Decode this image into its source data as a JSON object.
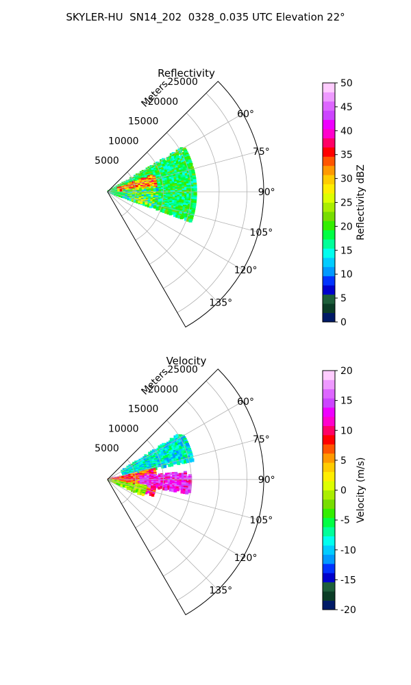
{
  "figure_title": "SKYLER-HU  SN14_202  0328_0.035 UTC Elevation 22°",
  "colors": {
    "frame": "#000000",
    "grid": "#b0b0b0",
    "background": "#ffffff"
  },
  "chart_data": [
    {
      "type": "heatmap",
      "projection": "polar-sector",
      "title": "Reflectivity",
      "range_label": "Meters",
      "range_ticks": [
        5000,
        10000,
        15000,
        20000,
        25000
      ],
      "range_max": 28000,
      "azimuth_range": [
        45,
        150
      ],
      "azimuth_ticks": [
        "60°",
        "75°",
        "90°",
        "105°",
        "120°",
        "135°"
      ],
      "azimuth_tick_values": [
        60,
        75,
        90,
        105,
        120,
        135
      ],
      "grid": true,
      "colorbar": {
        "label": "Reflectivity dBZ",
        "min": 0,
        "max": 50,
        "ticks": [
          0,
          5,
          10,
          15,
          20,
          25,
          30,
          35,
          40,
          45,
          50
        ],
        "colors": [
          "#001a66",
          "#0b3d26",
          "#1d5e3a",
          "#0000cc",
          "#0033ff",
          "#0099ff",
          "#00ccff",
          "#00ffee",
          "#00ff99",
          "#00ff44",
          "#33ee00",
          "#77dd00",
          "#aaee00",
          "#ddff00",
          "#ffee00",
          "#ffcc00",
          "#ff9900",
          "#ff5500",
          "#ff0000",
          "#ff0066",
          "#ff00cc",
          "#ee00ff",
          "#cc44ff",
          "#dd66ff",
          "#ee99ff",
          "#ffccff"
        ]
      },
      "echo_regions": [
        {
          "az": [
            60,
            110
          ],
          "range": [
            0,
            16000
          ],
          "value_range": [
            14,
            22
          ]
        },
        {
          "az": [
            70,
            85
          ],
          "range": [
            2000,
            9000
          ],
          "value_range": [
            25,
            38
          ]
        },
        {
          "az": [
            85,
            108
          ],
          "range": [
            3000,
            9000
          ],
          "value_range": [
            10,
            28
          ]
        }
      ]
    },
    {
      "type": "heatmap",
      "projection": "polar-sector",
      "title": "Velocity",
      "range_label": "Meters",
      "range_ticks": [
        5000,
        10000,
        15000,
        20000,
        25000
      ],
      "range_max": 28000,
      "azimuth_range": [
        45,
        150
      ],
      "azimuth_ticks": [
        "60°",
        "75°",
        "90°",
        "105°",
        "120°",
        "135°"
      ],
      "azimuth_tick_values": [
        60,
        75,
        90,
        105,
        120,
        135
      ],
      "grid": true,
      "colorbar": {
        "label": "Velocity (m/s)",
        "min": -20,
        "max": 20,
        "ticks": [
          -20,
          -15,
          -10,
          -5,
          0,
          5,
          10,
          15,
          20
        ],
        "colors": [
          "#001a66",
          "#0b3d26",
          "#1d5e3a",
          "#0000cc",
          "#0033ff",
          "#0099ff",
          "#00ccff",
          "#00ffee",
          "#00ff99",
          "#00ff44",
          "#33ee00",
          "#77dd00",
          "#aaee00",
          "#ddff00",
          "#ffee00",
          "#ffcc00",
          "#ff9900",
          "#ff5500",
          "#ff0000",
          "#ff0066",
          "#ff00cc",
          "#ee00ff",
          "#cc44ff",
          "#dd66ff",
          "#ee99ff",
          "#ffccff"
        ]
      },
      "echo_regions": [
        {
          "az": [
            58,
            78
          ],
          "range": [
            3000,
            16000
          ],
          "value_range": [
            -12,
            -5
          ]
        },
        {
          "az": [
            78,
            110
          ],
          "range": [
            0,
            9000
          ],
          "value_range": [
            3,
            13
          ]
        },
        {
          "az": [
            85,
            100
          ],
          "range": [
            6000,
            15000
          ],
          "value_range": [
            10,
            17
          ]
        },
        {
          "az": [
            100,
            115
          ],
          "range": [
            0,
            7000
          ],
          "value_range": [
            -4,
            2
          ]
        }
      ]
    }
  ]
}
